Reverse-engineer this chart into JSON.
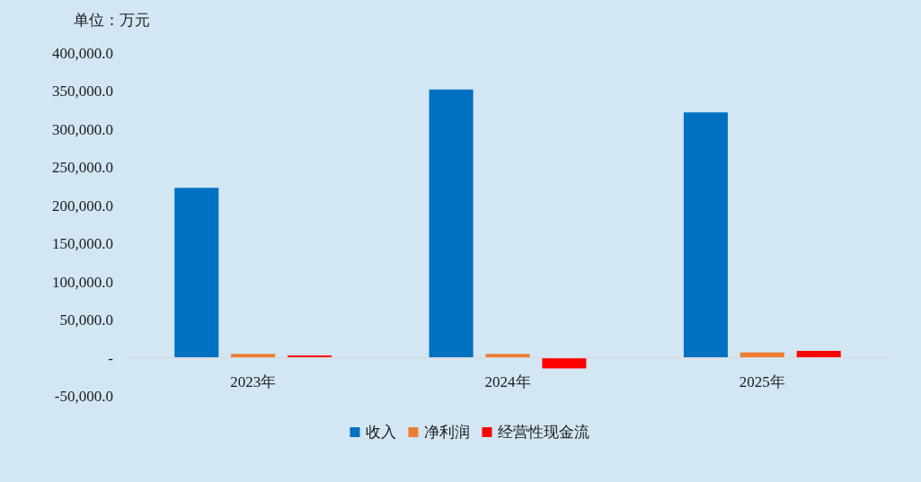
{
  "chart_data": {
    "type": "bar",
    "ylabel": "单位：万元",
    "categories": [
      "2023年",
      "2024年",
      "2025年"
    ],
    "series": [
      {
        "name": "收入",
        "color": "#0070c0",
        "values": [
          223000,
          352000,
          322000
        ]
      },
      {
        "name": "净利润",
        "color": "#ed7d31",
        "values": [
          5000,
          5000,
          7000
        ]
      },
      {
        "name": "经营性现金流",
        "color": "#ff0000",
        "values": [
          3000,
          -14000,
          9000
        ]
      }
    ],
    "ylim": [
      -50000,
      400000
    ],
    "yticks": [
      {
        "value": -50000,
        "label": "-50,000.0"
      },
      {
        "value": 0,
        "label": "-"
      },
      {
        "value": 50000,
        "label": "50,000.0"
      },
      {
        "value": 100000,
        "label": "100,000.0"
      },
      {
        "value": 150000,
        "label": "150,000.0"
      },
      {
        "value": 200000,
        "label": "200,000.0"
      },
      {
        "value": 250000,
        "label": "250,000.0"
      },
      {
        "value": 300000,
        "label": "300,000.0"
      },
      {
        "value": 350000,
        "label": "350,000.0"
      },
      {
        "value": 400000,
        "label": "400,000.0"
      }
    ],
    "legend": "bottom"
  }
}
